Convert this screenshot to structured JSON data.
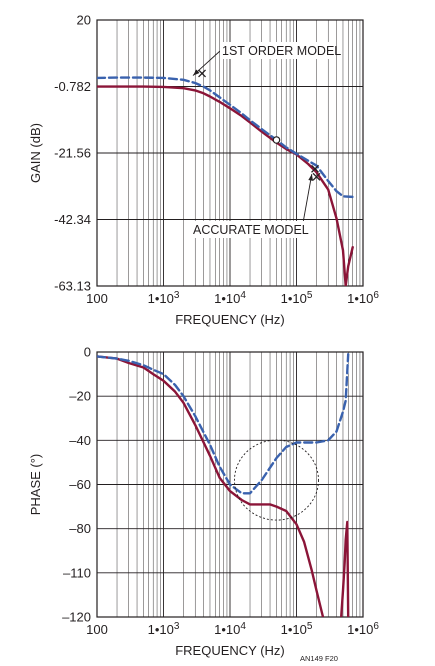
{
  "figure_id": "AN149 F20",
  "chart_data": [
    {
      "type": "line",
      "id": "gain",
      "title": "",
      "xlabel": "FREQUENCY (Hz)",
      "ylabel": "GAIN (dB)",
      "x_scale": "log",
      "xlim": [
        100,
        1000000
      ],
      "ylim": [
        -63.13,
        20
      ],
      "x_ticks": [
        {
          "value": 100,
          "label": "100"
        },
        {
          "value": 1000,
          "label": "1•10",
          "exp": "3"
        },
        {
          "value": 10000,
          "label": "1•10",
          "exp": "4"
        },
        {
          "value": 100000,
          "label": "1•10",
          "exp": "5"
        },
        {
          "value": 1000000,
          "label": "1•10",
          "exp": "6"
        }
      ],
      "y_ticks": [
        "20",
        "-0.782",
        "-21.56",
        "-42.34",
        "-63.13"
      ],
      "grid": true,
      "series": [
        {
          "key": "first_order",
          "color": "#3a62ae",
          "dash": "dashed",
          "x": [
            100,
            200,
            500,
            1000,
            2000,
            3000,
            4000,
            5000,
            7000,
            10000,
            15000,
            20000,
            30000,
            50000,
            70000,
            100000,
            150000,
            200000,
            300000,
            400000,
            500000,
            700000
          ],
          "y": [
            1.9,
            2.0,
            2.0,
            1.9,
            1.3,
            0.3,
            -0.8,
            -2.0,
            -4.2,
            -6.5,
            -9.2,
            -11.3,
            -14.1,
            -17.5,
            -19.8,
            -21.8,
            -24.0,
            -25.5,
            -30.3,
            -33.5,
            -35.1,
            -35.3
          ]
        },
        {
          "key": "accurate",
          "color": "#8b1538",
          "dash": "solid",
          "x": [
            100,
            200,
            500,
            1000,
            2000,
            3000,
            4000,
            5000,
            7000,
            10000,
            15000,
            20000,
            30000,
            50000,
            70000,
            100000,
            150000,
            200000,
            300000,
            400000,
            500000,
            550000,
            600000,
            700000
          ],
          "y": [
            -0.8,
            -0.8,
            -0.8,
            -0.9,
            -1.3,
            -2.0,
            -2.9,
            -3.9,
            -5.6,
            -7.6,
            -10.0,
            -12.0,
            -14.9,
            -18.3,
            -20.3,
            -22.0,
            -25.0,
            -27.6,
            -33.0,
            -42.0,
            -52.0,
            -63.13,
            -57.0,
            -51.0
          ]
        }
      ],
      "markers": [
        {
          "shape": "x",
          "x": 3800,
          "y": 3.3
        },
        {
          "shape": "circle",
          "x": 50000,
          "y": -17.5
        },
        {
          "shape": "x",
          "x": 190000,
          "y": -26.5
        },
        {
          "shape": "x",
          "x": 200000,
          "y": -29.0
        }
      ],
      "annotations": [
        {
          "text": "1ST ORDER MODEL",
          "points_to": {
            "x": 2500,
            "y": 2.0
          }
        },
        {
          "text": "ACCURATE MODEL",
          "points_to": {
            "x": 170000,
            "y": -27.5
          }
        }
      ]
    },
    {
      "type": "line",
      "id": "phase",
      "title": "",
      "xlabel": "FREQUENCY (Hz)",
      "ylabel": "PHASE (°)",
      "x_scale": "log",
      "xlim": [
        100,
        1000000
      ],
      "ylim": [
        -120,
        0
      ],
      "x_ticks": [
        {
          "value": 100,
          "label": "100"
        },
        {
          "value": 1000,
          "label": "1•10",
          "exp": "3"
        },
        {
          "value": 10000,
          "label": "1•10",
          "exp": "4"
        },
        {
          "value": 100000,
          "label": "1•10",
          "exp": "5"
        },
        {
          "value": 1000000,
          "label": "1•10",
          "exp": "6"
        }
      ],
      "y_ticks": [
        "0",
        "–20",
        "–40",
        "–60",
        "–80",
        "–110",
        "–120"
      ],
      "grid": true,
      "series": [
        {
          "key": "first_order",
          "color": "#3a62ae",
          "dash": "dashed",
          "x": [
            100,
            200,
            300,
            500,
            700,
            1000,
            1500,
            2000,
            3000,
            5000,
            7000,
            10000,
            15000,
            20000,
            30000,
            50000,
            70000,
            100000,
            130000,
            200000,
            300000,
            400000,
            500000,
            550000,
            600000
          ],
          "y": [
            -2,
            -3,
            -4,
            -6,
            -8,
            -10,
            -15,
            -20,
            -29,
            -42,
            -52,
            -60,
            -64,
            -64,
            -58,
            -48,
            -43,
            -41,
            -41,
            -41,
            -40,
            -36,
            -27,
            -22,
            -1
          ]
        },
        {
          "key": "accurate",
          "color": "#8b1538",
          "dash": "solid",
          "x": [
            100,
            200,
            300,
            500,
            700,
            1000,
            1500,
            2000,
            3000,
            5000,
            7000,
            10000,
            15000,
            20000,
            30000,
            40000,
            50000,
            70000,
            100000,
            130000,
            170000,
            200000,
            250000
          ],
          "y": [
            -2,
            -3,
            -5,
            -7,
            -10,
            -13,
            -18,
            -23,
            -33,
            -47,
            -57,
            -63,
            -67,
            -69,
            -69,
            -69,
            -70,
            -72,
            -78,
            -86,
            -99,
            -108,
            -120
          ]
        },
        {
          "key": "accurate_upper",
          "color": "#8b1538",
          "dash": "solid",
          "x": [
            470000,
            500000,
            530000,
            550000,
            580000,
            600000
          ],
          "y": [
            -120,
            -108,
            -95,
            -85,
            -77,
            -120
          ]
        }
      ],
      "markers": [],
      "annotations": [
        {
          "shape": "dotted-circle",
          "x_center": 50000,
          "y_center": -58
        }
      ]
    }
  ]
}
